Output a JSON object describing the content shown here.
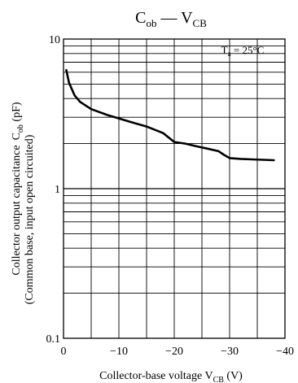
{
  "chart_data": {
    "type": "line",
    "title": {
      "main": "C",
      "main_sub": "ob",
      "dash": " — ",
      "right": "V",
      "right_sub": "CB"
    },
    "annotation": {
      "prefix": "T",
      "prefix_sub": "a",
      "value": " = 25°C"
    },
    "xlabel": {
      "text": "Collector-base voltage  V",
      "sub": "CB",
      "unit": "  (V)"
    },
    "ylabel": {
      "line1": "Collector output capacitance",
      "line2": "(Common base, input open circuited)",
      "symbol": "C",
      "symbol_sub": "ob",
      "unit": "  (pF)"
    },
    "xlim": [
      0,
      -40
    ],
    "ylim": [
      0.1,
      10
    ],
    "y_scale": "log",
    "x_ticks": [
      0,
      -10,
      -20,
      -30,
      -40
    ],
    "x_tick_labels": [
      "0",
      "−10",
      "−20",
      "−30",
      "−40"
    ],
    "y_tick_values": [
      10,
      1,
      0.1
    ],
    "y_tick_labels": [
      "10",
      "1",
      "0.1"
    ],
    "grid": true,
    "series": [
      {
        "color": "#000000",
        "x": [
          -0.5,
          -1,
          -2,
          -3,
          -5,
          -8,
          -10,
          -12,
          -15,
          -18,
          -20,
          -22,
          -24,
          -26,
          -28,
          -29,
          -30,
          -32,
          -34,
          -36,
          -38
        ],
        "y": [
          6.2,
          5.1,
          4.2,
          3.8,
          3.4,
          3.1,
          2.95,
          2.8,
          2.6,
          2.35,
          2.05,
          2.0,
          1.92,
          1.85,
          1.78,
          1.68,
          1.6,
          1.58,
          1.57,
          1.56,
          1.55
        ]
      }
    ]
  }
}
